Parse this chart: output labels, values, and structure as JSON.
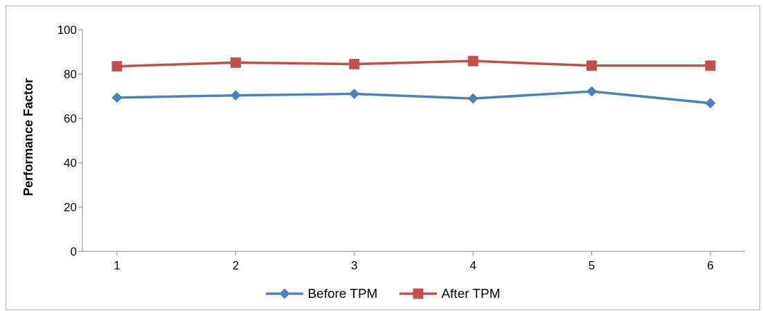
{
  "chart_data": {
    "type": "line",
    "ylabel": "Performance Factor",
    "categories": [
      "1",
      "2",
      "3",
      "4",
      "5",
      "6"
    ],
    "series": [
      {
        "name": "Before TPM",
        "color": "#4f81bd",
        "marker": "diamond",
        "values": [
          69.4,
          70.4,
          71.1,
          69.0,
          72.2,
          66.9
        ]
      },
      {
        "name": "After TPM",
        "color": "#c0504d",
        "marker": "square",
        "values": [
          83.5,
          85.2,
          84.5,
          85.9,
          83.8,
          83.8
        ]
      }
    ],
    "ylim": [
      0,
      100
    ],
    "yticks": [
      0,
      20,
      40,
      60,
      80,
      100
    ],
    "grid": false,
    "legend": "bottom"
  }
}
